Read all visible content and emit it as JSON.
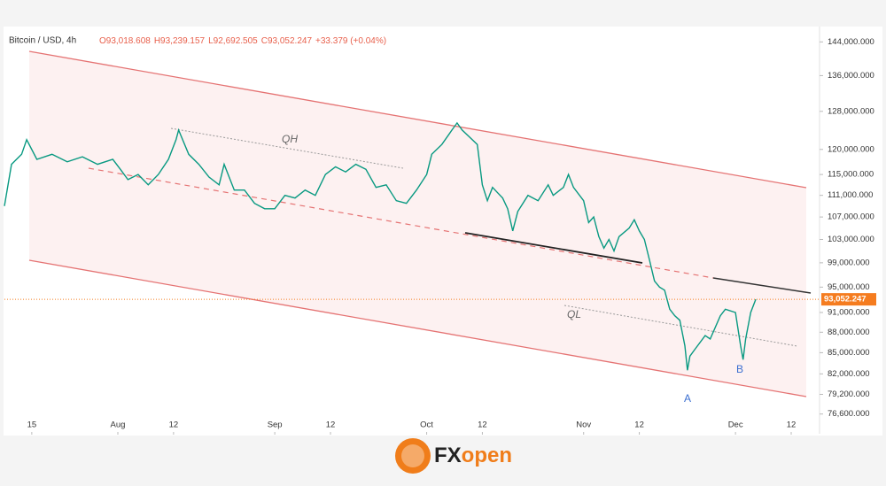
{
  "chart_data": {
    "type": "line",
    "title": "Bitcoin / USD, 4h",
    "ohlc": [
      "O93,018.608",
      "H93,239.157",
      "L92,692.505",
      "C93,052.247",
      "+33.379 (+0.04%)"
    ],
    "log_scale": true,
    "series": [
      {
        "name": "Bitcoin / USD",
        "color": "#089981",
        "x": [
          8.6,
          10,
          12,
          13,
          15,
          18,
          21,
          24,
          27,
          30,
          31.5,
          33,
          35,
          37,
          39,
          41,
          42.5,
          43,
          45,
          47,
          49,
          51,
          52,
          54,
          56,
          58,
          60,
          62,
          64,
          66,
          68,
          70,
          72,
          74,
          76,
          78,
          80,
          82,
          84,
          86,
          88,
          90,
          92,
          93,
          95,
          97,
          98,
          99,
          101,
          102,
          103,
          104,
          105,
          106,
          107,
          108,
          109,
          110,
          112,
          114,
          116,
          117,
          119,
          120,
          121,
          123,
          124,
          125,
          126,
          127,
          128,
          129,
          130,
          132,
          133,
          134,
          135,
          136,
          137,
          138,
          139,
          140,
          141,
          142,
          143,
          143.5,
          144,
          145,
          147,
          148,
          150,
          151,
          153,
          154,
          154.5,
          155,
          156,
          157
        ],
        "values": [
          109000,
          117000,
          119000,
          122000,
          118000,
          119000,
          117500,
          118500,
          117000,
          118000,
          116000,
          114000,
          115000,
          113000,
          115000,
          118000,
          122000,
          124000,
          119000,
          117000,
          114500,
          113000,
          117000,
          112000,
          112000,
          109500,
          108500,
          108500,
          111000,
          110500,
          112000,
          111000,
          115000,
          116500,
          115500,
          117000,
          116000,
          112500,
          113000,
          110000,
          109500,
          112000,
          115000,
          119000,
          121000,
          124000,
          125500,
          124000,
          122000,
          121000,
          113000,
          110000,
          112500,
          111500,
          110500,
          108500,
          104500,
          108000,
          111000,
          110000,
          113000,
          111000,
          112500,
          115000,
          112500,
          110000,
          106000,
          107000,
          103500,
          101500,
          103000,
          101000,
          103500,
          105000,
          106500,
          104500,
          103000,
          99500,
          96000,
          95000,
          94500,
          91500,
          90500,
          89800,
          86000,
          82500,
          84500,
          85500,
          87500,
          87000,
          90500,
          91500,
          91000,
          86000,
          84000,
          87000,
          91000,
          93052.247
        ]
      }
    ],
    "last_price": {
      "value": 93052.247,
      "label": "93,052.247"
    },
    "last_price_color": "#f57c1f",
    "xlim": [
      8.6,
      169.6
    ],
    "ylim": [
      74300,
      147800
    ],
    "xticks": [
      {
        "value": 14,
        "label": "15"
      },
      {
        "value": 31,
        "label": "Aug"
      },
      {
        "value": 42,
        "label": "12"
      },
      {
        "value": 62,
        "label": "Sep"
      },
      {
        "value": 73,
        "label": "12"
      },
      {
        "value": 92,
        "label": "Oct"
      },
      {
        "value": 103,
        "label": "12"
      },
      {
        "value": 123,
        "label": "Nov"
      },
      {
        "value": 134,
        "label": "12"
      },
      {
        "value": 153,
        "label": "Dec"
      },
      {
        "value": 164,
        "label": "12"
      }
    ],
    "yticks": [
      {
        "value": 144000,
        "label": "144,000.000"
      },
      {
        "value": 136000,
        "label": "136,000.000"
      },
      {
        "value": 128000,
        "label": "128,000.000"
      },
      {
        "value": 120000,
        "label": "120,000.000"
      },
      {
        "value": 115000,
        "label": "115,000.000"
      },
      {
        "value": 111000,
        "label": "111,000.000"
      },
      {
        "value": 107000,
        "label": "107,000.000"
      },
      {
        "value": 103000,
        "label": "103,000.000"
      },
      {
        "value": 99000,
        "label": "99,000.000"
      },
      {
        "value": 95000,
        "label": "95,000.000"
      },
      {
        "value": 91000,
        "label": "91,000.000"
      },
      {
        "value": 88000,
        "label": "88,000.000"
      },
      {
        "value": 85000,
        "label": "85,000.000"
      },
      {
        "value": 82000,
        "label": "82,000.000"
      },
      {
        "value": 79200,
        "label": "79,200.000"
      },
      {
        "value": 76600,
        "label": "76,600.000"
      }
    ],
    "annotations": [
      "QH",
      "QL",
      "A",
      "B"
    ],
    "brand": [
      "FX",
      "open"
    ]
  }
}
